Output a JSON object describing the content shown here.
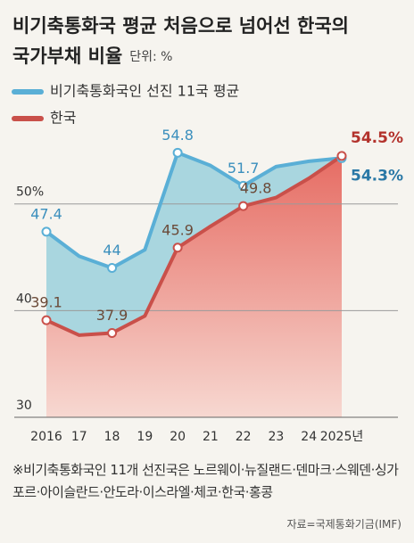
{
  "chart_data": {
    "type": "area",
    "title": [
      "비기축통화국 평균 처음으로 넘어선 한국의",
      "국가부채 비율"
    ],
    "subtitle": "단위: %",
    "categories": [
      "2016",
      "17",
      "18",
      "19",
      "20",
      "21",
      "22",
      "23",
      "24",
      "2025년"
    ],
    "series": [
      {
        "name": "비기축통화국인 선진 11국 평균",
        "color": "#5aafd6",
        "fill": "#a9d6df",
        "values": [
          47.4,
          45.1,
          44,
          45.7,
          54.8,
          53.6,
          51.7,
          53.5,
          54.0,
          54.3
        ],
        "value_labels": [
          "47.4",
          null,
          "44",
          null,
          "54.8",
          null,
          "51.7",
          null,
          null,
          "54.3%"
        ]
      },
      {
        "name": "한국",
        "color": "#c9504a",
        "fill": "#e8827a",
        "values": [
          39.1,
          37.7,
          37.9,
          39.5,
          45.9,
          47.9,
          49.8,
          50.6,
          52.4,
          54.5
        ],
        "value_labels": [
          "39.1",
          null,
          "37.9",
          null,
          "45.9",
          null,
          "49.8",
          null,
          null,
          "54.5%"
        ]
      }
    ],
    "ylim": [
      30,
      57
    ],
    "yticks": [
      30,
      40,
      {
        "value": 50,
        "label": "50%"
      }
    ],
    "grid": true,
    "footnote": "※비기축통화국인 11개 선진국은 노르웨이·뉴질랜드·덴마크·스웨덴·싱가포르·아이슬란드·안도라·이스라엘·체코·한국·홍콩",
    "source": "자료=국제통화기금(IMF)"
  }
}
